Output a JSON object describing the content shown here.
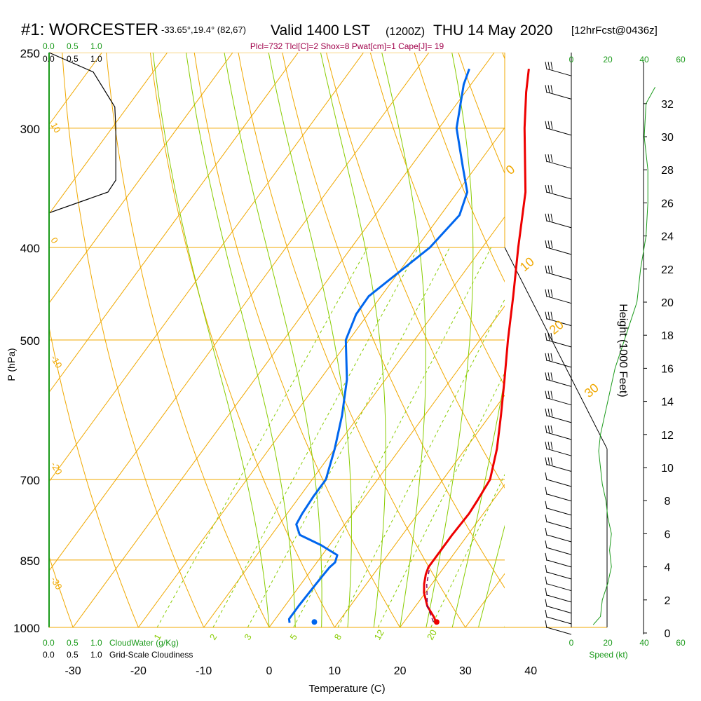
{
  "header": {
    "station": "#1: WORCESTER",
    "coords": "-33.65°,19.4° (82,67)",
    "valid": "Valid 1400 LST",
    "utc": "(1200Z)",
    "date": "THU 14 May 2020",
    "forecast": "[12hrFcst@0436z]",
    "indices": "Plcl=732 Tlcl[C]=2 Shox=8 Pwat[cm]=1 Cape[J]= 19"
  },
  "colors": {
    "temperature": "#ee0000",
    "dewpoint": "#0066ee",
    "isotherm_isobar": "#f0a800",
    "mixing_ratio": "#88cc00",
    "wind_speed": "#1a9a1a",
    "parcel": "#7a0060",
    "indices_text": "#a0004a",
    "green_text": "#1a9a1a"
  },
  "chart_data": {
    "type": "line",
    "diagram": "skew-T log-P sounding",
    "xlabel": "Temperature (C)",
    "ylabel": "P (hPa)",
    "xlim": [
      -35,
      45
    ],
    "ylim": [
      1000,
      250
    ],
    "x_ticks": [
      -30,
      -20,
      -10,
      0,
      10,
      20,
      30,
      40
    ],
    "pressure_ticks": [
      250,
      300,
      400,
      500,
      700,
      850,
      1000
    ],
    "mixing_ratio_labels": [
      "1",
      "2",
      "3",
      "5",
      "8",
      "12",
      "20"
    ],
    "adiabat_labels_left": [
      "10",
      "0",
      "-10",
      "-20",
      "-30"
    ],
    "adiabat_labels_right": [
      "0",
      "10",
      "20",
      "30"
    ],
    "cloud_scales": {
      "cloudwater_label": "CloudWater (g/Kg)",
      "cloudiness_label": "Grid-Scale Cloudiness",
      "ticks": [
        "0.0",
        "0.5",
        "1.0"
      ]
    },
    "height_axis": {
      "label": "Height (1000 Feet)",
      "ticks": [
        0,
        2,
        4,
        6,
        8,
        10,
        12,
        14,
        16,
        18,
        20,
        22,
        24,
        26,
        28,
        30,
        32
      ]
    },
    "speed_axis": {
      "label": "Speed (kt)",
      "ticks": [
        0,
        20,
        40,
        60
      ]
    },
    "series": [
      {
        "name": "Temperature",
        "pressure": [
          987,
          975,
          950,
          920,
          900,
          880,
          865,
          850,
          800,
          760,
          735,
          700,
          650,
          600,
          550,
          500,
          450,
          400,
          350,
          300,
          275,
          260
        ],
        "x": [
          24.9,
          24,
          21.8,
          19.8,
          18.8,
          18,
          17.6,
          17.6,
          17.6,
          17.8,
          17.6,
          17.2,
          14.8,
          11.7,
          8.2,
          4.3,
          0.2,
          -4.5,
          -9.6,
          -16.9,
          -20.7,
          -22.9
        ]
      },
      {
        "name": "Dewpoint",
        "pressure": [
          989,
          980,
          950,
          900,
          880,
          865,
          855,
          840,
          820,
          800,
          780,
          760,
          730,
          700,
          650,
          600,
          550,
          500,
          470,
          450,
          400,
          370,
          350,
          330,
          300,
          270,
          260
        ],
        "x": [
          2.6,
          2.1,
          2.1,
          2.3,
          2.4,
          2.5,
          2.8,
          2.3,
          -1.3,
          -5.7,
          -7.4,
          -7.7,
          -7.9,
          -7.9,
          -10,
          -12.6,
          -15.9,
          -20.5,
          -21.8,
          -21.9,
          -18,
          -17.1,
          -18.5,
          -21.9,
          -27.3,
          -31.1,
          -32
        ]
      },
      {
        "name": "Parcel",
        "pressure": [
          987,
          950,
          900,
          865
        ],
        "x": [
          24.5,
          21.8,
          19.2,
          17.8
        ]
      }
    ],
    "surface_points": [
      {
        "name": "surface temperature",
        "x": 25,
        "pressure": 987
      },
      {
        "name": "surface dewpoint",
        "x": 6.3,
        "pressure": 987
      }
    ],
    "wind_speed_profile": {
      "height_kft": [
        0.5,
        1,
        2,
        3,
        4,
        5,
        6,
        7,
        8,
        9,
        10,
        11,
        12,
        13,
        14,
        16,
        18,
        20,
        22,
        24,
        26,
        28,
        30,
        32,
        33
      ],
      "speed_kt": [
        12,
        16,
        17,
        20,
        22,
        21,
        22,
        20,
        19,
        17,
        16,
        15,
        16,
        18,
        20,
        24,
        30,
        36,
        38,
        41,
        42,
        42,
        40,
        41,
        46
      ]
    },
    "wind_barbs_hpa": [
      1000,
      975,
      950,
      925,
      900,
      875,
      850,
      825,
      800,
      775,
      750,
      725,
      700,
      675,
      650,
      625,
      600,
      575,
      550,
      525,
      500,
      475,
      450,
      425,
      400,
      375,
      350,
      325,
      300,
      275,
      260
    ],
    "cloud_cover": {
      "pressure": [
        250,
        262,
        285,
        300,
        340,
        350,
        368,
        400
      ],
      "fraction": [
        0.0,
        0.45,
        0.67,
        0.68,
        0.68,
        0.6,
        0.0,
        0.0
      ]
    }
  }
}
